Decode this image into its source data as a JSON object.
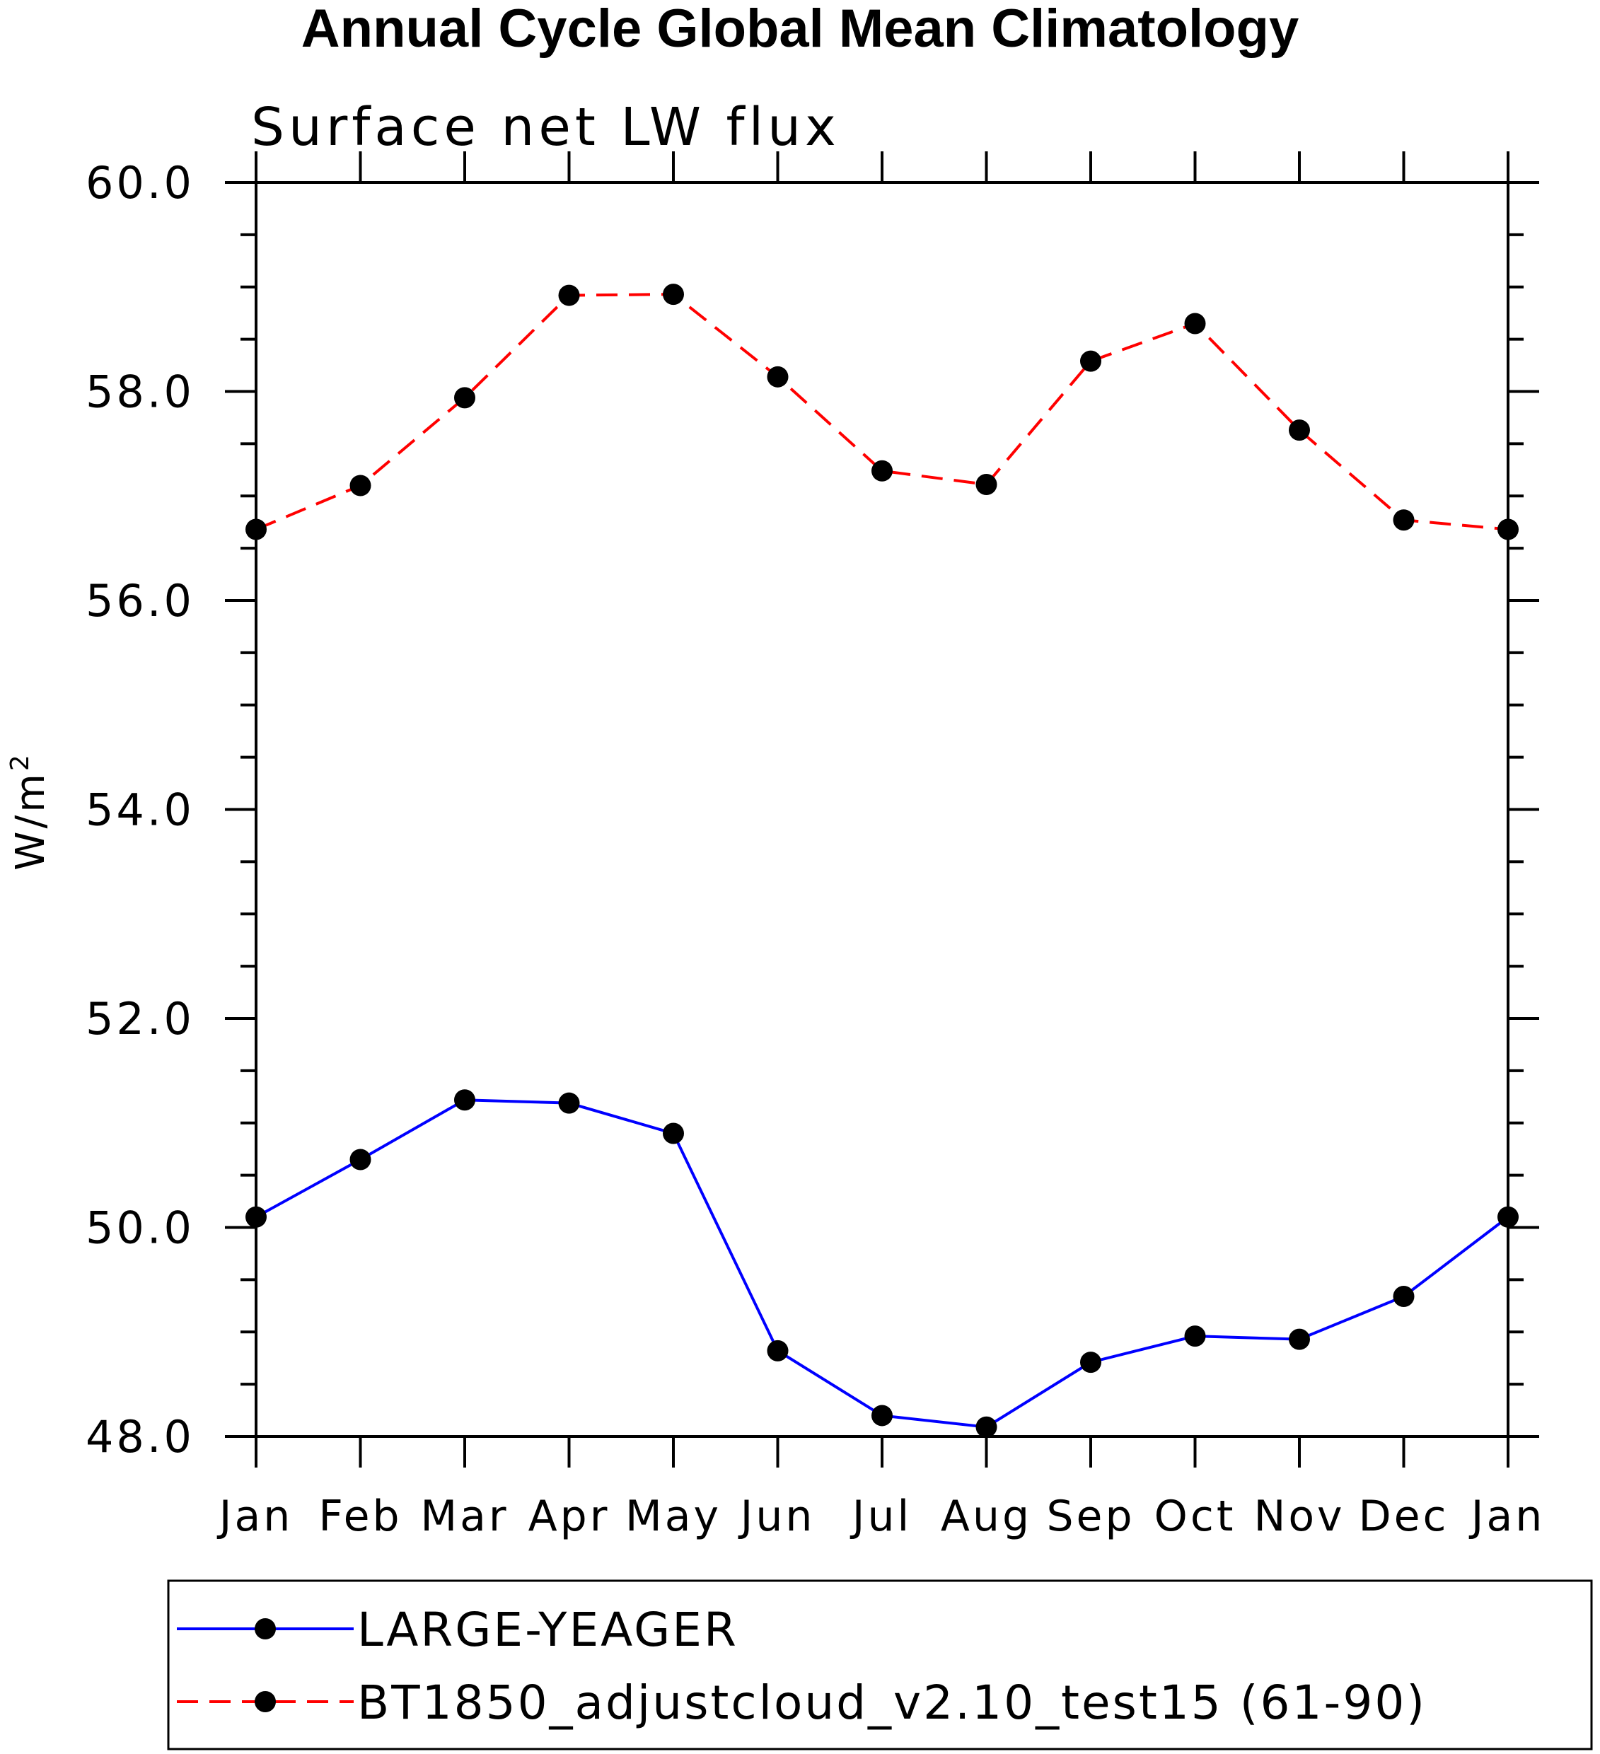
{
  "chart_data": {
    "type": "line",
    "title": "Annual Cycle Global Mean Climatology",
    "subtitle": "Surface net LW flux",
    "ylabel": "W/m",
    "ylabel_superscript": "2",
    "ylim": [
      48.0,
      60.0
    ],
    "yticks": [
      {
        "value": 48,
        "label": "48.0"
      },
      {
        "value": 50,
        "label": "50.0"
      },
      {
        "value": 52,
        "label": "52.0"
      },
      {
        "value": 54,
        "label": "54.0"
      },
      {
        "value": 56,
        "label": "56.0"
      },
      {
        "value": 58,
        "label": "58.0"
      },
      {
        "value": 60,
        "label": "60.0"
      }
    ],
    "categories": [
      "Jan",
      "Feb",
      "Mar",
      "Apr",
      "May",
      "Jun",
      "Jul",
      "Aug",
      "Sep",
      "Oct",
      "Nov",
      "Dec",
      "Jan"
    ],
    "series": [
      {
        "name": "LARGE-YEAGER",
        "color": "#0000ff",
        "dash": "solid",
        "values": [
          50.1,
          50.65,
          51.22,
          51.19,
          50.9,
          48.82,
          48.2,
          48.09,
          48.71,
          48.96,
          48.93,
          49.34,
          50.1
        ]
      },
      {
        "name": "BT1850_adjustcloud_v2.10_test15 (61-90)",
        "color": "#ff0000",
        "dash": "dashed",
        "values": [
          56.68,
          57.1,
          57.94,
          58.92,
          58.93,
          58.14,
          57.24,
          57.11,
          58.29,
          58.65,
          57.63,
          56.77,
          56.68
        ]
      }
    ],
    "marker": "filled-circle",
    "marker_color": "#000000",
    "legend_position": "bottom"
  }
}
